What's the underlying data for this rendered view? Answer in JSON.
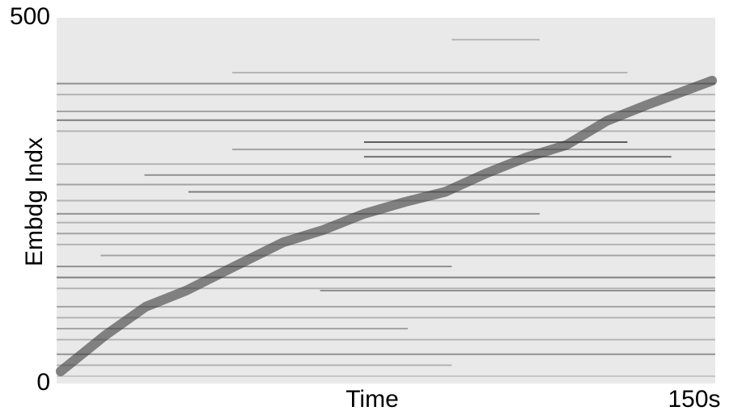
{
  "chart_data": {
    "type": "heatmap",
    "xlabel": "Time",
    "ylabel": "Embdg Indx",
    "xlim": [
      0,
      150
    ],
    "ylim": [
      0,
      500
    ],
    "xticks": [
      {
        "value": 150,
        "label": "150s"
      }
    ],
    "yticks": [
      0,
      500
    ],
    "background": "#e9e9e9",
    "color": "#3a3a3a",
    "trajectory": {
      "t": [
        0.9,
        11.1,
        20.3,
        29.5,
        40.5,
        51.6,
        60.8,
        70,
        79.2,
        88.5,
        97.7,
        106.9,
        116.1,
        125.3,
        134.5,
        149.3
      ],
      "idx": [
        16.6,
        66,
        105,
        127,
        160,
        193,
        210,
        232,
        248,
        262,
        287,
        309,
        326,
        359,
        381,
        414
      ]
    },
    "streaks": [
      {
        "idx": 410,
        "t0": 0,
        "t1": 150,
        "level": 0.5
      },
      {
        "idx": 395,
        "t0": 0,
        "t1": 150,
        "level": 0.3
      },
      {
        "idx": 372,
        "t0": 0,
        "t1": 150,
        "level": 0.4
      },
      {
        "idx": 360,
        "t0": 0,
        "t1": 150,
        "level": 0.6
      },
      {
        "idx": 345,
        "t0": 0,
        "t1": 150,
        "level": 0.3
      },
      {
        "idx": 330,
        "t0": 70,
        "t1": 130,
        "level": 0.8
      },
      {
        "idx": 320,
        "t0": 40,
        "t1": 150,
        "level": 0.4
      },
      {
        "idx": 310,
        "t0": 70,
        "t1": 140,
        "level": 0.7
      },
      {
        "idx": 300,
        "t0": 0,
        "t1": 150,
        "level": 0.3
      },
      {
        "idx": 285,
        "t0": 20,
        "t1": 150,
        "level": 0.5
      },
      {
        "idx": 272,
        "t0": 0,
        "t1": 150,
        "level": 0.4
      },
      {
        "idx": 262,
        "t0": 30,
        "t1": 150,
        "level": 0.6
      },
      {
        "idx": 250,
        "t0": 0,
        "t1": 150,
        "level": 0.3
      },
      {
        "idx": 232,
        "t0": 0,
        "t1": 110,
        "level": 0.5
      },
      {
        "idx": 220,
        "t0": 0,
        "t1": 150,
        "level": 0.3
      },
      {
        "idx": 205,
        "t0": 0,
        "t1": 150,
        "level": 0.4
      },
      {
        "idx": 190,
        "t0": 0,
        "t1": 150,
        "level": 0.3
      },
      {
        "idx": 175,
        "t0": 10,
        "t1": 150,
        "level": 0.4
      },
      {
        "idx": 160,
        "t0": 0,
        "t1": 90,
        "level": 0.5
      },
      {
        "idx": 145,
        "t0": 0,
        "t1": 150,
        "level": 0.6
      },
      {
        "idx": 130,
        "t0": 0,
        "t1": 150,
        "level": 0.3
      },
      {
        "idx": 127,
        "t0": 60,
        "t1": 150,
        "level": 0.5
      },
      {
        "idx": 105,
        "t0": 0,
        "t1": 150,
        "level": 0.4
      },
      {
        "idx": 90,
        "t0": 0,
        "t1": 150,
        "level": 0.3
      },
      {
        "idx": 75,
        "t0": 0,
        "t1": 80,
        "level": 0.4
      },
      {
        "idx": 60,
        "t0": 0,
        "t1": 150,
        "level": 0.3
      },
      {
        "idx": 40,
        "t0": 0,
        "t1": 150,
        "level": 0.5
      },
      {
        "idx": 25,
        "t0": 0,
        "t1": 90,
        "level": 0.3
      },
      {
        "idx": 10,
        "t0": 0,
        "t1": 150,
        "level": 0.2
      },
      {
        "idx": 470,
        "t0": 90,
        "t1": 110,
        "level": 0.3
      },
      {
        "idx": 425,
        "t0": 40,
        "t1": 130,
        "level": 0.3
      }
    ]
  }
}
